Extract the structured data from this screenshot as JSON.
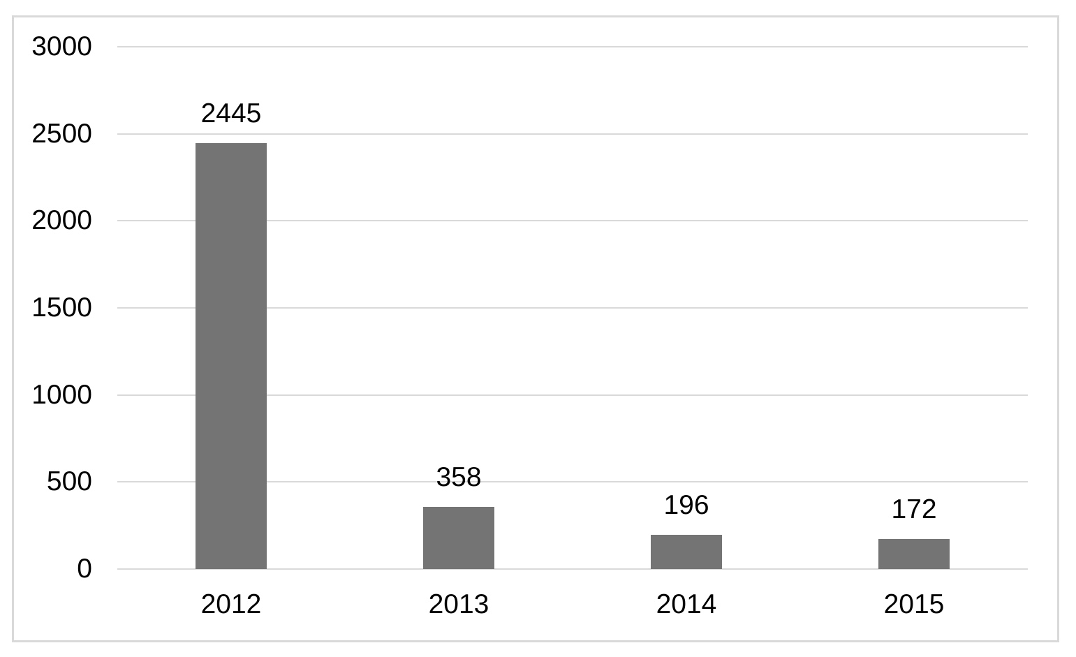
{
  "chart_data": {
    "type": "bar",
    "title": "",
    "categories": [
      "2012",
      "2013",
      "2014",
      "2015"
    ],
    "values": [
      2445,
      358,
      196,
      172
    ],
    "data_labels": [
      "2445",
      "358",
      "196",
      "172"
    ],
    "yticks": [
      0,
      500,
      1000,
      1500,
      2000,
      2500,
      3000
    ],
    "ytick_labels": [
      "0",
      "500",
      "1000",
      "1500",
      "2000",
      "2500",
      "3000"
    ],
    "ylim": [
      0,
      3000
    ],
    "xlabel": "",
    "ylabel": "",
    "legend": null,
    "grid": true,
    "colors": {
      "bar": "#747474",
      "gridline": "#d9d9d9",
      "frame_border": "#d9d9d9",
      "text": "#000000",
      "background": "#ffffff"
    }
  }
}
